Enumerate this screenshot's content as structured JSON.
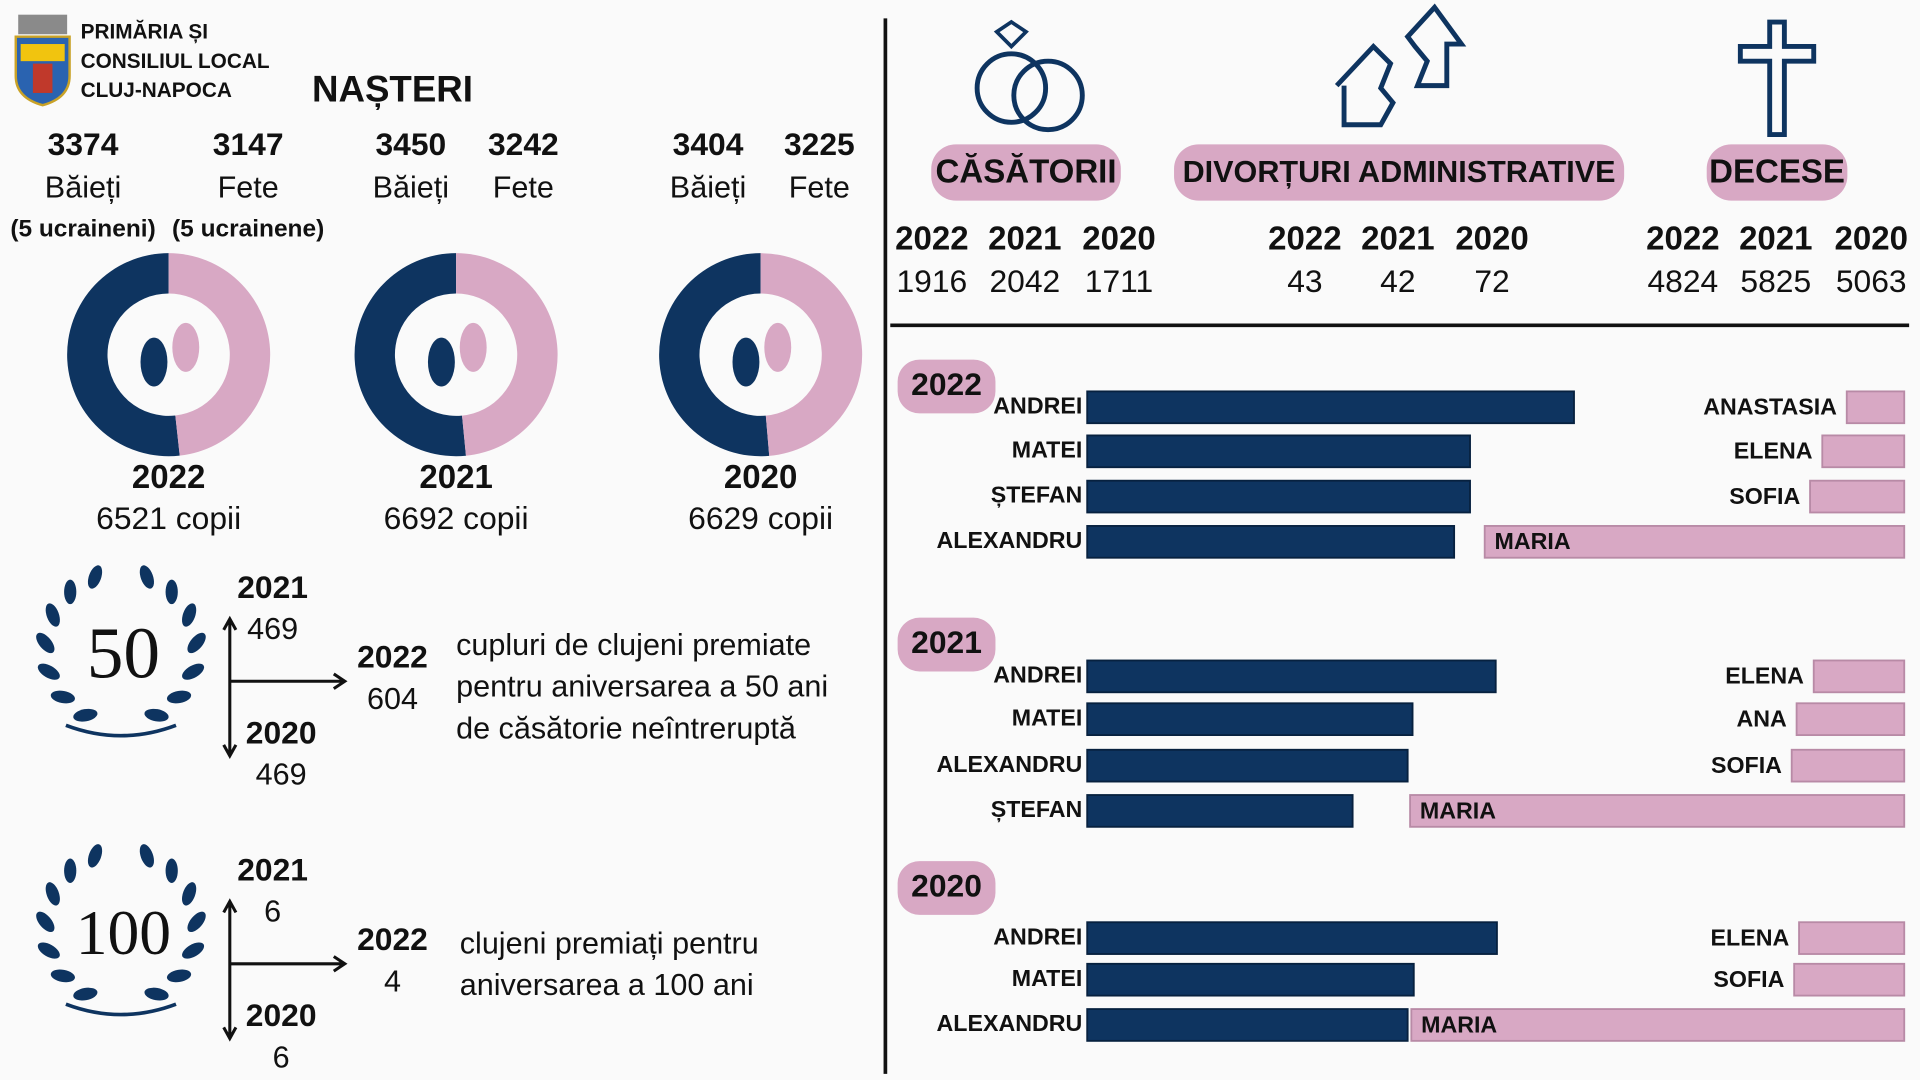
{
  "header": {
    "org_lines": [
      "PRIMĂRIA ȘI",
      "CONSILIUL LOCAL",
      "CLUJ-NAPOCA"
    ],
    "title": "NAȘTERI"
  },
  "births": [
    {
      "boys": {
        "value": 3374,
        "label": "Băieți",
        "note": "(5 ucraineni)"
      },
      "girls": {
        "value": 3147,
        "label": "Fete",
        "note": "(5 ucrainene)"
      },
      "year": "2022",
      "total": 6521,
      "unit": "copii"
    },
    {
      "boys": {
        "value": 3450,
        "label": "Băieți"
      },
      "girls": {
        "value": 3242,
        "label": "Fete"
      },
      "year": "2021",
      "total": 6692,
      "unit": "copii"
    },
    {
      "boys": {
        "value": 3404,
        "label": "Băieți"
      },
      "girls": {
        "value": 3225,
        "label": "Fete"
      },
      "year": "2020",
      "total": 6629,
      "unit": "copii"
    }
  ],
  "anniversaries": [
    {
      "emblem": "50",
      "entries": [
        {
          "year": "2021",
          "value": 469
        },
        {
          "year": "2022",
          "value": 604
        },
        {
          "year": "2020",
          "value": 469
        }
      ],
      "text": [
        "cupluri de clujeni premiate",
        "pentru aniversarea a 50 ani",
        "de căsătorie neîntreruptă"
      ]
    },
    {
      "emblem": "100",
      "entries": [
        {
          "year": "2021",
          "value": 6
        },
        {
          "year": "2022",
          "value": 4
        },
        {
          "year": "2020",
          "value": 6
        }
      ],
      "text": [
        "clujeni premiați pentru",
        "aniversarea a 100 ani"
      ]
    }
  ],
  "stats": [
    {
      "title": "CĂSĂTORII",
      "years": [
        "2022",
        "2021",
        "2020"
      ],
      "values": [
        1916,
        2042,
        1711
      ]
    },
    {
      "title": "DIVORȚURI ADMINISTRATIVE",
      "years": [
        "2022",
        "2021",
        "2020"
      ],
      "values": [
        43,
        42,
        72
      ]
    },
    {
      "title": "DECESE",
      "years": [
        "2022",
        "2021",
        "2020"
      ],
      "values": [
        4824,
        5825,
        5063
      ]
    }
  ],
  "names": [
    {
      "year": "2022",
      "boys": [
        {
          "name": "ANDREI",
          "value": 398
        },
        {
          "name": "MATEI",
          "value": 313
        },
        {
          "name": "ȘTEFAN",
          "value": 313
        },
        {
          "name": "ALEXANDRU",
          "value": 300
        }
      ],
      "girls": [
        {
          "name": "ANASTASIA",
          "value": 47
        },
        {
          "name": "ELENA",
          "value": 67
        },
        {
          "name": "SOFIA",
          "value": 77
        },
        {
          "name": "MARIA",
          "value": 343
        }
      ]
    },
    {
      "year": "2021",
      "boys": [
        {
          "name": "ANDREI",
          "value": 334
        },
        {
          "name": "MATEI",
          "value": 266
        },
        {
          "name": "ALEXANDRU",
          "value": 262
        },
        {
          "name": "ȘTEFAN",
          "value": 217
        }
      ],
      "girls": [
        {
          "name": "ELENA",
          "value": 74
        },
        {
          "name": "ANA",
          "value": 88
        },
        {
          "name": "SOFIA",
          "value": 92
        },
        {
          "name": "MARIA",
          "value": 404
        }
      ]
    },
    {
      "year": "2020",
      "boys": [
        {
          "name": "ANDREI",
          "value": 335
        },
        {
          "name": "MATEI",
          "value": 267
        },
        {
          "name": "ALEXANDRU",
          "value": 262
        }
      ],
      "girls": [
        {
          "name": "ELENA",
          "value": 86
        },
        {
          "name": "SOFIA",
          "value": 90
        },
        {
          "name": "MARIA",
          "value": 403
        }
      ]
    }
  ]
}
